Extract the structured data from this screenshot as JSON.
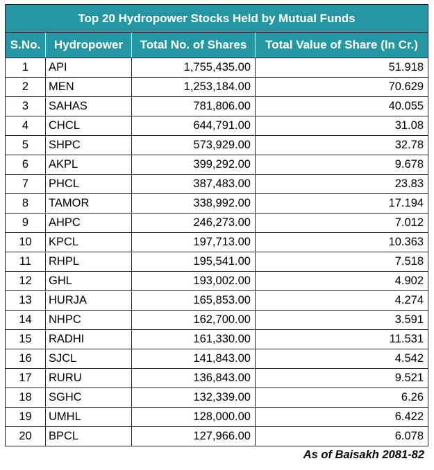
{
  "title": "Top 20 Hydropower Stocks Held by Mutual Funds",
  "headers": {
    "sno": "S.No.",
    "name": "Hydropower",
    "shares": "Total No. of Shares",
    "value": "Total Value of Share (In Cr.)"
  },
  "rows": [
    {
      "sno": "1",
      "name": "API",
      "shares": "1,755,435.00",
      "value": "51.918"
    },
    {
      "sno": "2",
      "name": "MEN",
      "shares": "1,253,184.00",
      "value": "70.629"
    },
    {
      "sno": "3",
      "name": "SAHAS",
      "shares": "781,806.00",
      "value": "40.055"
    },
    {
      "sno": "4",
      "name": "CHCL",
      "shares": "644,791.00",
      "value": "31.08"
    },
    {
      "sno": "5",
      "name": "SHPC",
      "shares": "573,929.00",
      "value": "32.78"
    },
    {
      "sno": "6",
      "name": "AKPL",
      "shares": "399,292.00",
      "value": "9.678"
    },
    {
      "sno": "7",
      "name": "PHCL",
      "shares": "387,483.00",
      "value": "23.83"
    },
    {
      "sno": "8",
      "name": "TAMOR",
      "shares": "338,992.00",
      "value": "17.194"
    },
    {
      "sno": "9",
      "name": "AHPC",
      "shares": "246,273.00",
      "value": "7.012"
    },
    {
      "sno": "10",
      "name": "KPCL",
      "shares": "197,713.00",
      "value": "10.363"
    },
    {
      "sno": "11",
      "name": "RHPL",
      "shares": "195,541.00",
      "value": "7.518"
    },
    {
      "sno": "12",
      "name": "GHL",
      "shares": "193,002.00",
      "value": "4.902"
    },
    {
      "sno": "13",
      "name": "HURJA",
      "shares": "165,853.00",
      "value": "4.274"
    },
    {
      "sno": "14",
      "name": "NHPC",
      "shares": "162,700.00",
      "value": "3.591"
    },
    {
      "sno": "15",
      "name": "RADHI",
      "shares": "161,330.00",
      "value": "11.531"
    },
    {
      "sno": "16",
      "name": "SJCL",
      "shares": "141,843.00",
      "value": "4.542"
    },
    {
      "sno": "17",
      "name": "RURU",
      "shares": "136,843.00",
      "value": "9.521"
    },
    {
      "sno": "18",
      "name": "SGHC",
      "shares": "132,339.00",
      "value": "6.26"
    },
    {
      "sno": "19",
      "name": "UMHL",
      "shares": "128,000.00",
      "value": "6.422"
    },
    {
      "sno": "20",
      "name": "BPCL",
      "shares": "127,966.00",
      "value": "6.078"
    }
  ],
  "footnote": "As of Baisakh 2081-82",
  "colors": {
    "header_bg": "#2596a2",
    "header_text": "#ffffff",
    "border": "#222222"
  }
}
